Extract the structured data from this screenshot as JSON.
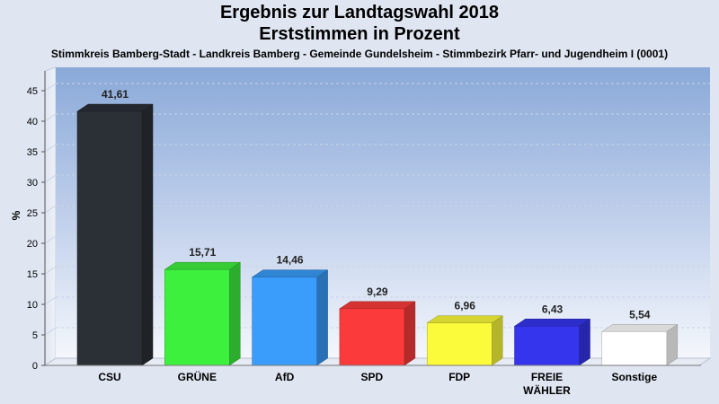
{
  "header": {
    "title_line1": "Ergebnis zur Landtagswahl 2018",
    "title_line2": "Erststimmen in Prozent",
    "subtitle": "Stimmkreis Bamberg-Stadt - Landkreis Bamberg - Gemeinde Gundelsheim - Stimmbezirk Pfarr- und Jugendheim I (0001)"
  },
  "chart_data": {
    "type": "bar",
    "title": "Ergebnis zur Landtagswahl 2018",
    "subtitle": "Erststimmen in Prozent",
    "ylabel": "%",
    "xlabel": "",
    "ylim": [
      0,
      47
    ],
    "yticks": [
      0,
      5,
      10,
      15,
      20,
      25,
      30,
      35,
      40,
      45
    ],
    "grid": true,
    "categories": [
      "CSU",
      "GRÜNE",
      "AfD",
      "SPD",
      "FDP",
      "FREIE WÄHLER",
      "Sonstige"
    ],
    "category_lines": [
      [
        "CSU"
      ],
      [
        "GRÜNE"
      ],
      [
        "AfD"
      ],
      [
        "SPD"
      ],
      [
        "FDP"
      ],
      [
        "FREIE",
        "WÄHLER"
      ],
      [
        "Sonstige"
      ]
    ],
    "values": [
      41.61,
      15.71,
      14.46,
      9.29,
      6.96,
      6.43,
      5.54
    ],
    "value_labels": [
      "41,61",
      "15,71",
      "14,46",
      "9,29",
      "6,96",
      "6,43",
      "5,54"
    ],
    "colors": [
      "#2b2f36",
      "#3ef03e",
      "#3a9cfb",
      "#fb3b3b",
      "#fbfb3b",
      "#3535ee",
      "#ffffff"
    ]
  }
}
